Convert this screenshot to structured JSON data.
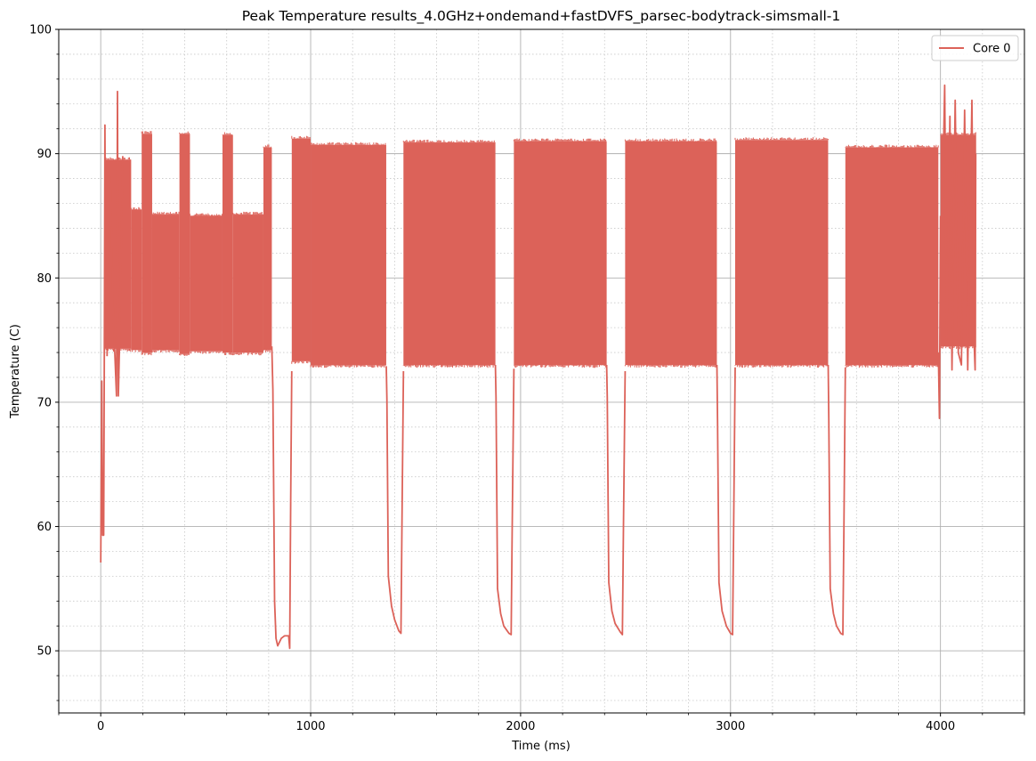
{
  "chart_data": {
    "type": "line",
    "title": "Peak Temperature results_4.0GHz+ondemand+fastDVFS_parsec-bodytrack-simsmall-1",
    "xlabel": "Time (ms)",
    "ylabel": "Temperature (C)",
    "xlim": [
      -200,
      4400
    ],
    "ylim": [
      45,
      100
    ],
    "x_ticks": [
      0,
      1000,
      2000,
      3000,
      4000
    ],
    "y_ticks": [
      50,
      60,
      70,
      80,
      90,
      100
    ],
    "grid": true,
    "minor_grid": true,
    "legend_position": "top-right",
    "color": "#dc6259",
    "series": [
      {
        "name": "Core 0",
        "segments": [
          {
            "kind": "points",
            "points": [
              [
                0,
                57.1
              ],
              [
                5,
                71.7
              ],
              [
                9,
                59.3
              ],
              [
                14,
                59.3
              ],
              [
                17,
                73.5
              ],
              [
                20,
                92.3
              ],
              [
                24,
                77.5
              ]
            ]
          },
          {
            "kind": "band",
            "x_start": 20,
            "x_end": 145,
            "low": 74.3,
            "high": 89.5
          },
          {
            "kind": "points",
            "points": [
              [
                30,
                73.7
              ],
              [
                45,
                88.2
              ],
              [
                60,
                77.0
              ],
              [
                75,
                70.5
              ],
              [
                80,
                95.0
              ],
              [
                84,
                70.5
              ],
              [
                90,
                75.0
              ],
              [
                105,
                89.8
              ]
            ]
          },
          {
            "kind": "band",
            "x_start": 145,
            "x_end": 195,
            "low": 74.2,
            "high": 85.5
          },
          {
            "kind": "band",
            "x_start": 195,
            "x_end": 245,
            "low": 74.0,
            "high": 91.6
          },
          {
            "kind": "band",
            "x_start": 245,
            "x_end": 375,
            "low": 74.2,
            "high": 85.1
          },
          {
            "kind": "band",
            "x_start": 375,
            "x_end": 425,
            "low": 73.9,
            "high": 91.6
          },
          {
            "kind": "band",
            "x_start": 425,
            "x_end": 580,
            "low": 74.1,
            "high": 85.0
          },
          {
            "kind": "band",
            "x_start": 580,
            "x_end": 630,
            "low": 74.0,
            "high": 91.5
          },
          {
            "kind": "band",
            "x_start": 630,
            "x_end": 775,
            "low": 74.0,
            "high": 85.1
          },
          {
            "kind": "band",
            "x_start": 775,
            "x_end": 815,
            "low": 74.2,
            "high": 90.5
          },
          {
            "kind": "points",
            "points": [
              [
                815,
                74.5
              ],
              [
                820,
                71.0
              ],
              [
                828,
                54.0
              ],
              [
                835,
                51.0
              ],
              [
                843,
                50.4
              ],
              [
                860,
                51.0
              ],
              [
                875,
                51.2
              ],
              [
                895,
                51.2
              ],
              [
                900,
                50.2
              ],
              [
                905,
                62.0
              ],
              [
                910,
                72.5
              ]
            ]
          },
          {
            "kind": "band",
            "x_start": 910,
            "x_end": 1000,
            "low": 73.3,
            "high": 91.2
          },
          {
            "kind": "band",
            "x_start": 1000,
            "x_end": 1360,
            "low": 73.0,
            "high": 90.7
          },
          {
            "kind": "points",
            "points": [
              [
                1360,
                72.9
              ],
              [
                1363,
                70.3
              ],
              [
                1370,
                56.0
              ],
              [
                1385,
                53.6
              ],
              [
                1400,
                52.5
              ],
              [
                1420,
                51.6
              ],
              [
                1430,
                51.4
              ],
              [
                1435,
                60.0
              ],
              [
                1442,
                72.5
              ]
            ]
          },
          {
            "kind": "band",
            "x_start": 1442,
            "x_end": 1880,
            "low": 73.0,
            "high": 90.9
          },
          {
            "kind": "points",
            "points": [
              [
                1880,
                73.0
              ],
              [
                1883,
                70.4
              ],
              [
                1890,
                55.0
              ],
              [
                1905,
                53.0
              ],
              [
                1920,
                52.0
              ],
              [
                1945,
                51.4
              ],
              [
                1955,
                51.3
              ],
              [
                1960,
                60.0
              ],
              [
                1968,
                72.7
              ]
            ]
          },
          {
            "kind": "band",
            "x_start": 1968,
            "x_end": 2410,
            "low": 73.0,
            "high": 91.0
          },
          {
            "kind": "points",
            "points": [
              [
                2410,
                73.0
              ],
              [
                2413,
                70.4
              ],
              [
                2420,
                55.5
              ],
              [
                2435,
                53.2
              ],
              [
                2450,
                52.2
              ],
              [
                2475,
                51.5
              ],
              [
                2485,
                51.3
              ],
              [
                2490,
                60.0
              ],
              [
                2498,
                72.5
              ]
            ]
          },
          {
            "kind": "band",
            "x_start": 2498,
            "x_end": 2935,
            "low": 73.0,
            "high": 91.0
          },
          {
            "kind": "points",
            "points": [
              [
                2935,
                73.0
              ],
              [
                2938,
                68.5
              ],
              [
                2945,
                55.5
              ],
              [
                2960,
                53.2
              ],
              [
                2980,
                52.0
              ],
              [
                3000,
                51.4
              ],
              [
                3010,
                51.3
              ],
              [
                3015,
                60.0
              ],
              [
                3022,
                72.8
              ]
            ]
          },
          {
            "kind": "band",
            "x_start": 3022,
            "x_end": 3465,
            "low": 73.0,
            "high": 91.1
          },
          {
            "kind": "points",
            "points": [
              [
                3465,
                73.0
              ],
              [
                3468,
                68.7
              ],
              [
                3475,
                55.0
              ],
              [
                3490,
                53.0
              ],
              [
                3505,
                52.0
              ],
              [
                3525,
                51.4
              ],
              [
                3535,
                51.3
              ],
              [
                3540,
                60.0
              ],
              [
                3547,
                72.8
              ]
            ]
          },
          {
            "kind": "band",
            "x_start": 3547,
            "x_end": 3990,
            "low": 73.0,
            "high": 90.5
          },
          {
            "kind": "points",
            "points": [
              [
                3990,
                74.0
              ],
              [
                3995,
                68.7
              ],
              [
                4000,
                85.0
              ]
            ]
          },
          {
            "kind": "band",
            "x_start": 4000,
            "x_end": 4170,
            "low": 74.5,
            "high": 91.5
          },
          {
            "kind": "points",
            "points": [
              [
                4010,
                86.0
              ],
              [
                4020,
                95.5
              ],
              [
                4030,
                75.0
              ],
              [
                4045,
                93.0
              ],
              [
                4055,
                72.6
              ],
              [
                4070,
                94.3
              ],
              [
                4085,
                74.0
              ],
              [
                4100,
                73.0
              ],
              [
                4115,
                93.5
              ],
              [
                4130,
                72.6
              ],
              [
                4150,
                94.3
              ],
              [
                4160,
                75.0
              ],
              [
                4165,
                72.6
              ],
              [
                4168,
                90.0
              ]
            ]
          }
        ]
      }
    ]
  }
}
